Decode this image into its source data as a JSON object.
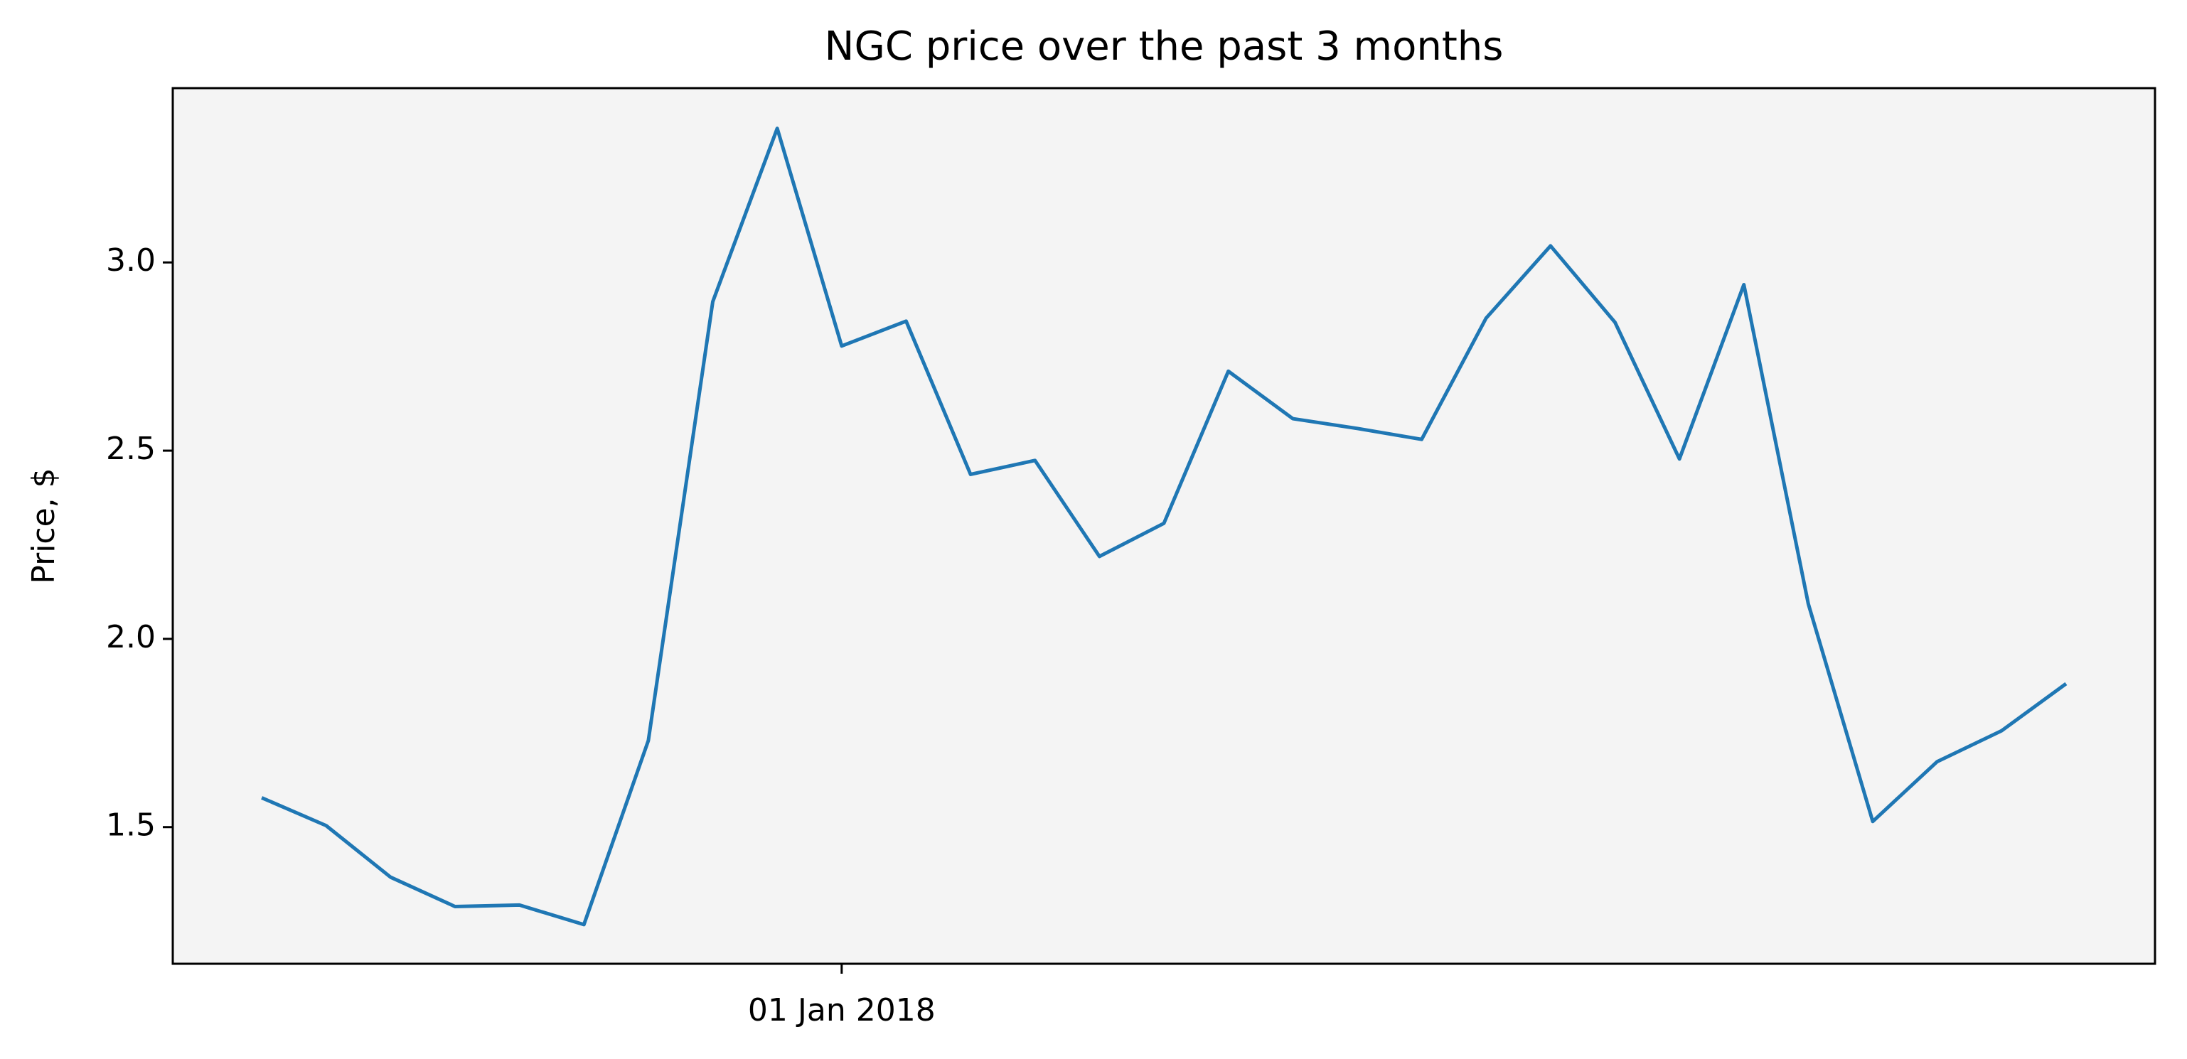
{
  "chart_data": {
    "type": "line",
    "title": "NGC price over the past 3 months",
    "y_label": "Price, $",
    "categories": [
      null,
      null,
      null,
      null,
      null,
      null,
      null,
      null,
      null,
      "01 Jan 2018",
      null,
      null,
      null,
      null,
      null,
      null,
      null,
      null,
      null,
      null,
      null,
      null,
      null,
      null,
      null,
      null,
      null,
      null,
      null
    ],
    "series": [
      {
        "name": "NGC",
        "color": "#1f77b4",
        "values": [
          1.578,
          1.504,
          1.367,
          1.289,
          1.293,
          1.241,
          1.73,
          2.896,
          3.356,
          2.778,
          2.844,
          2.437,
          2.474,
          2.219,
          2.307,
          2.711,
          2.585,
          2.559,
          2.53,
          2.852,
          3.044,
          2.841,
          2.478,
          2.941,
          2.093,
          1.515,
          1.674,
          1.756,
          1.881
        ]
      }
    ],
    "ylim": [
      1.137,
      3.463
    ],
    "yticks": [
      {
        "value": 1.5,
        "label": "1.5"
      },
      {
        "value": 2.0,
        "label": "2.0"
      },
      {
        "value": 2.5,
        "label": "2.5"
      },
      {
        "value": 3.0,
        "label": "3.0"
      }
    ],
    "grid": false
  }
}
